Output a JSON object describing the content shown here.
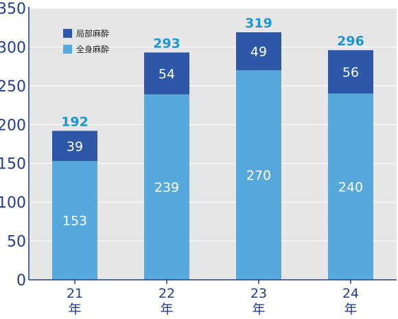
{
  "chart_data": {
    "type": "bar",
    "stacked": true,
    "categories": [
      "21",
      "22",
      "23",
      "24"
    ],
    "category_suffix": "年",
    "series": [
      {
        "name": "全身麻酔",
        "values": [
          153,
          239,
          270,
          240
        ],
        "color": "#57a9db"
      },
      {
        "name": "局部麻酔",
        "values": [
          39,
          54,
          49,
          56
        ],
        "color": "#2e57a8"
      }
    ],
    "totals": [
      192,
      293,
      319,
      296
    ],
    "ylim": [
      0,
      350
    ],
    "yticks": [
      0,
      50,
      100,
      150,
      200,
      250,
      300,
      350
    ],
    "grid": true,
    "legend_position": "top-left",
    "colors": {
      "plot_background": "#e6e6e6",
      "axis": "#1f3f8c",
      "total_label": "#1b97cf",
      "gridline": "#ffffff"
    }
  }
}
